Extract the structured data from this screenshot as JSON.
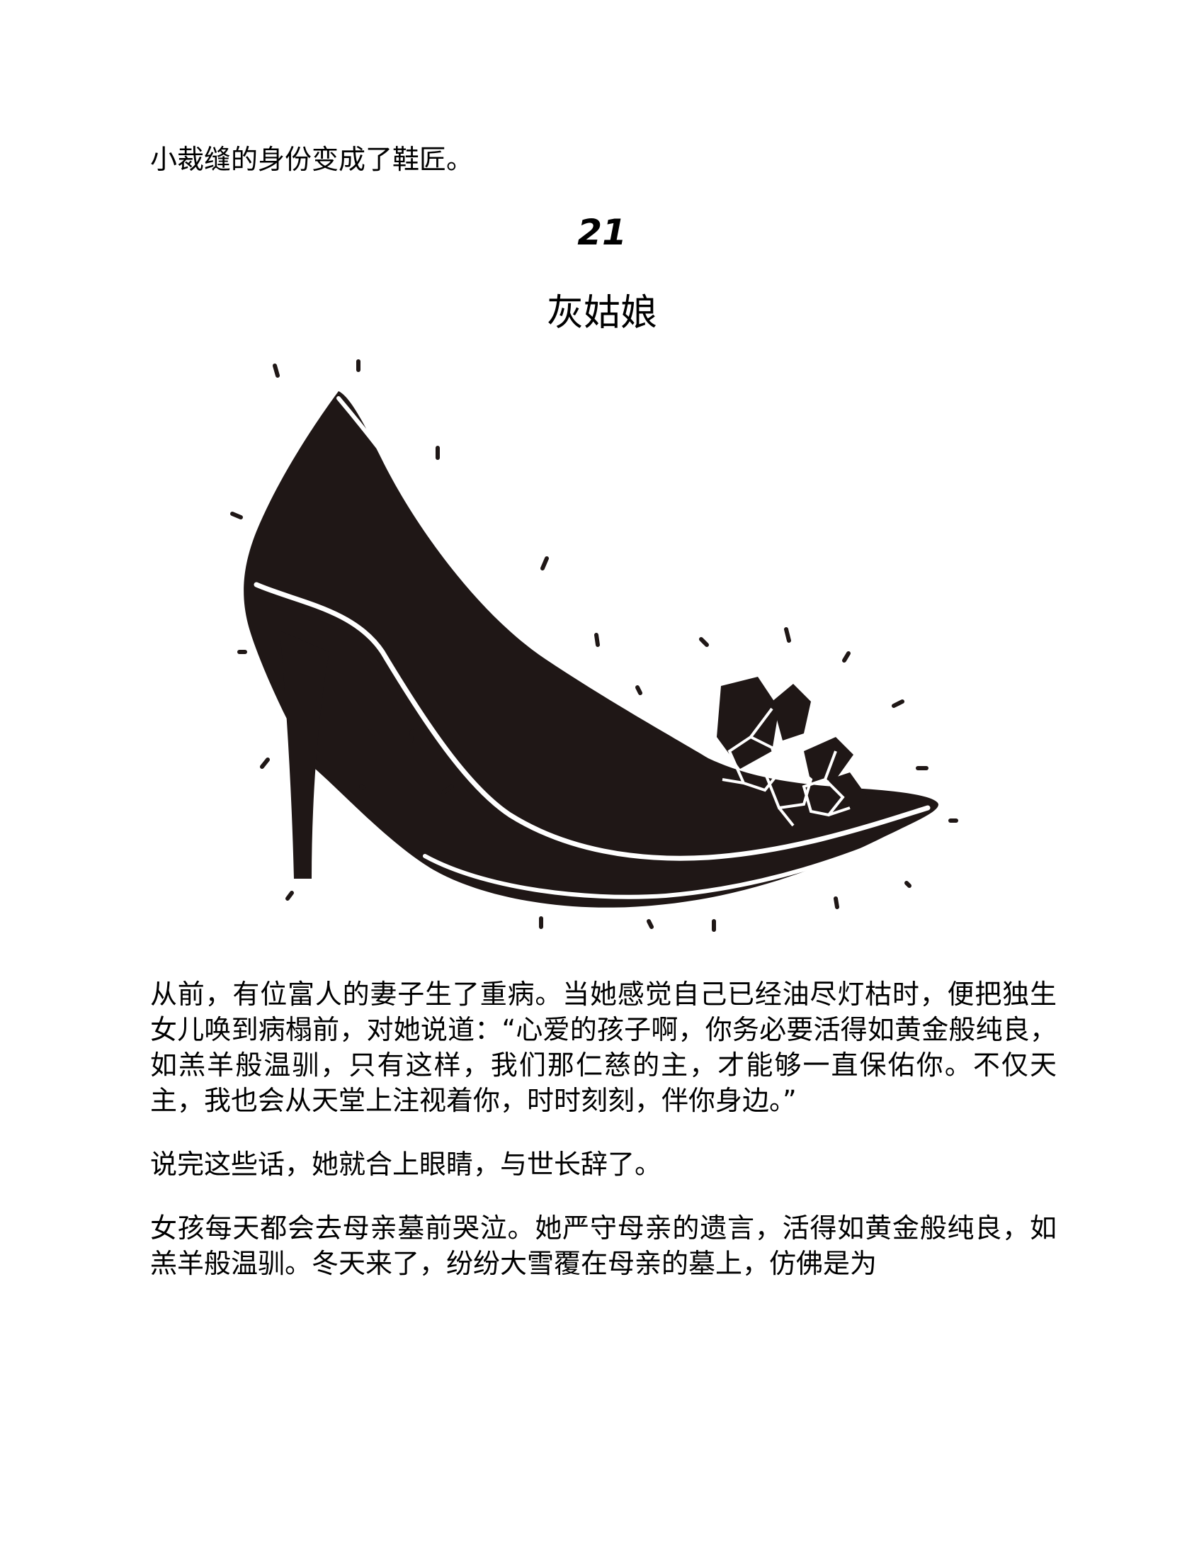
{
  "previous_section": {
    "last_line": "小裁缝的身份变成了鞋匠。"
  },
  "chapter": {
    "number": "21",
    "title": "灰姑娘"
  },
  "illustration": {
    "subject": "glass-slipper-icon",
    "fill_color": "#1f1716",
    "background": "#ffffff"
  },
  "paragraphs": [
    "从前，有位富人的妻子生了重病。当她感觉自己已经油尽灯枯时，便把独生女儿唤到病榻前，对她说道：“心爱的孩子啊，你务必要活得如黄金般纯良，如羔羊般温驯，只有这样，我们那仁慈的主，才能够一直保佑你。不仅天主，我也会从天堂上注视着你，时时刻刻，伴你身边。”",
    "说完这些话，她就合上眼睛，与世长辞了。",
    "女孩每天都会去母亲墓前哭泣。她严守母亲的遗言，活得如黄金般纯良，如羔羊般温驯。冬天来了，纷纷大雪覆在母亲的墓上，仿佛是为"
  ]
}
